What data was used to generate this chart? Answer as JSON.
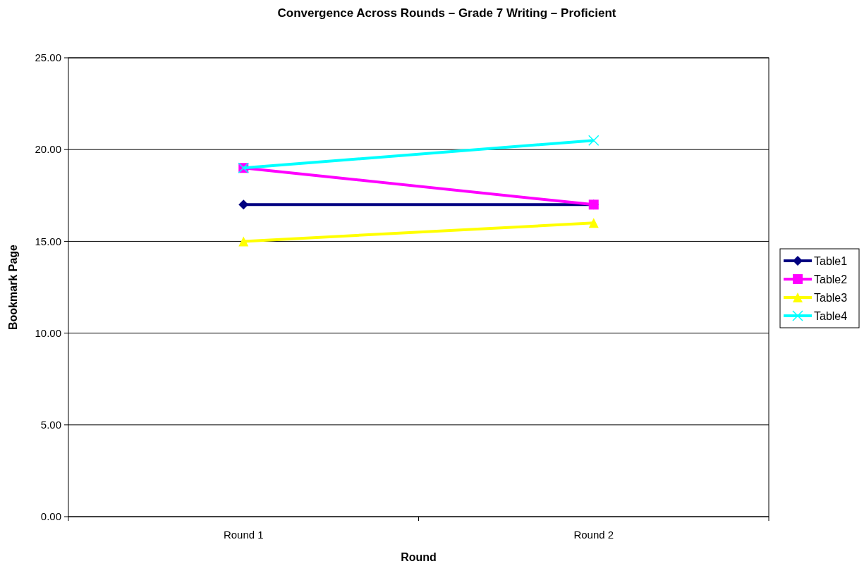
{
  "chart_data": {
    "type": "line",
    "title": "Convergence Across Rounds – Grade 7 Writing – Proficient",
    "xlabel": "Round",
    "ylabel": "Bookmark Page",
    "categories": [
      "Round 1",
      "Round 2"
    ],
    "series": [
      {
        "name": "Table1",
        "color": "#000080",
        "marker": "diamond",
        "values": [
          17,
          17
        ]
      },
      {
        "name": "Table2",
        "color": "#ff00ff",
        "marker": "square",
        "values": [
          19,
          17
        ]
      },
      {
        "name": "Table3",
        "color": "#ffff00",
        "marker": "triangle",
        "values": [
          15,
          16
        ]
      },
      {
        "name": "Table4",
        "color": "#00ffff",
        "marker": "cross",
        "values": [
          19,
          20.5
        ]
      }
    ],
    "ylim": [
      0,
      25
    ],
    "yticks": [
      {
        "value": 0,
        "label": "0.00"
      },
      {
        "value": 5,
        "label": "5.00"
      },
      {
        "value": 10,
        "label": "10.00"
      },
      {
        "value": 15,
        "label": "15.00"
      },
      {
        "value": 20,
        "label": "20.00"
      },
      {
        "value": 25,
        "label": "25.00"
      }
    ],
    "grid": "y",
    "legend": "right",
    "line_style": "solid"
  }
}
